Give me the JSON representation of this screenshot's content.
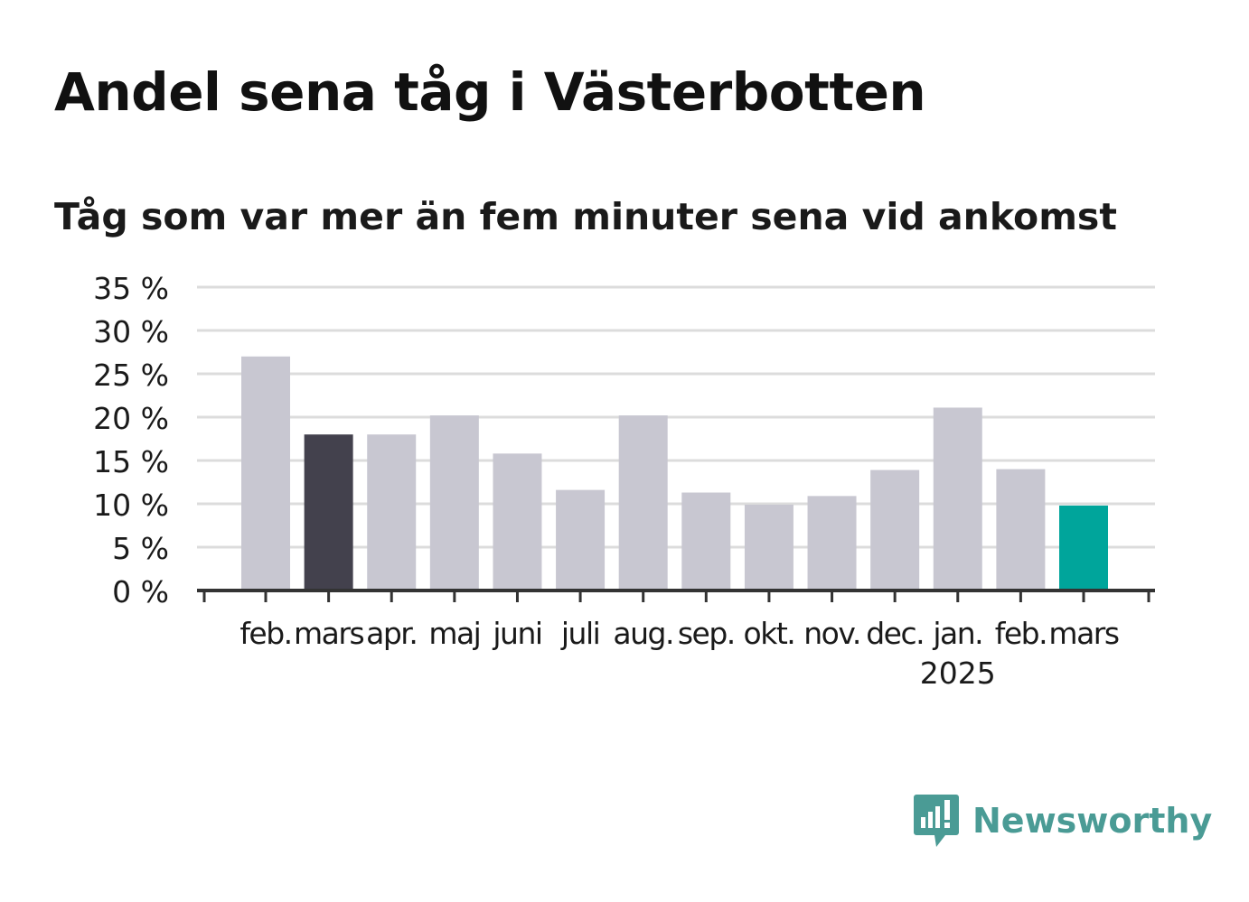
{
  "title": "Andel sena tåg i Västerbotten",
  "subtitle": "Tåg som var mer än fem minuter sena vid ankomst",
  "logo": {
    "text": "Newsworthy",
    "icon": "newsworthy-bar-chart-logo-icon",
    "color": "#4a9b95"
  },
  "colors": {
    "bar_default": "#c8c7d1",
    "bar_highlight_previous": "#43414d",
    "bar_highlight_current": "#00a59b",
    "grid": "#dcdcdc",
    "axis": "#333333",
    "text": "#1a1a1a"
  },
  "chart_data": {
    "type": "bar",
    "title": "Andel sena tåg i Västerbotten",
    "subtitle": "Tåg som var mer än fem minuter sena vid ankomst",
    "categories": [
      "feb.",
      "mars",
      "apr.",
      "maj",
      "juni",
      "juli",
      "aug.",
      "sep.",
      "okt.",
      "nov.",
      "dec.",
      "jan.",
      "feb.",
      "mars"
    ],
    "year_labels": [
      {
        "category_index": 11,
        "label": "2025"
      }
    ],
    "values": [
      27.0,
      18.0,
      18.0,
      20.2,
      15.8,
      11.6,
      20.2,
      11.3,
      9.9,
      10.9,
      13.9,
      21.1,
      14.0,
      9.8
    ],
    "bar_colors": [
      "#c8c7d1",
      "#43414d",
      "#c8c7d1",
      "#c8c7d1",
      "#c8c7d1",
      "#c8c7d1",
      "#c8c7d1",
      "#c8c7d1",
      "#c8c7d1",
      "#c8c7d1",
      "#c8c7d1",
      "#c8c7d1",
      "#c8c7d1",
      "#00a59b"
    ],
    "yticks": [
      0,
      5,
      10,
      15,
      20,
      25,
      30,
      35
    ],
    "ytick_labels": [
      "0 %",
      "5 %",
      "10 %",
      "15 %",
      "20 %",
      "25 %",
      "30 %",
      "35 %"
    ],
    "ylim": [
      0,
      35
    ],
    "xlabel": "",
    "ylabel": "",
    "grid": true,
    "legend": "none"
  }
}
